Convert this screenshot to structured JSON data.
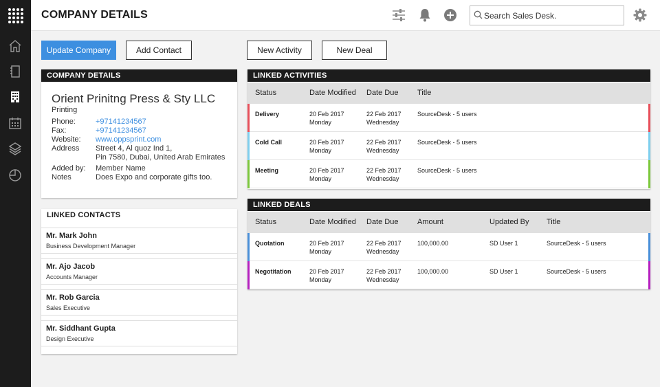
{
  "header": {
    "title": "COMPANY DETAILS",
    "search_placeholder": "Search Sales Desk."
  },
  "actions": {
    "update_company": "Update Company",
    "add_contact": "Add Contact",
    "new_activity": "New Activity",
    "new_deal": "New Deal"
  },
  "company": {
    "heading": "COMPANY DETAILS",
    "name": "Orient Prinitng Press & Sty LLC",
    "industry": "Printing",
    "phone_label": "Phone:",
    "phone": "+97141234567",
    "fax_label": "Fax:",
    "fax": "+97141234567",
    "website_label": "Website:",
    "website": "www.oppsprint.com",
    "address_label": "Address",
    "address_line1": "Street 4, Al quoz Ind 1,",
    "address_line2": "Pin 7580, Dubai, United Arab Emirates",
    "added_by_label": "Added by:",
    "added_by": "Member Name",
    "notes_label": "Notes",
    "notes": "Does Expo and corporate gifts too."
  },
  "contacts": {
    "heading": "LINKED CONTACTS",
    "items": [
      {
        "name": "Mr. Mark John",
        "role": "Business Development Manager"
      },
      {
        "name": "Mr. Ajo Jacob",
        "role": "Accounts Manager"
      },
      {
        "name": "Mr. Rob Garcia",
        "role": "Sales Executive"
      },
      {
        "name": "Mr. Siddhant Gupta",
        "role": "Design Executive"
      }
    ]
  },
  "activities": {
    "heading": "LINKED ACTIVITIES",
    "columns": [
      "Status",
      "Date Modified",
      "Date Due",
      "Title"
    ],
    "rows": [
      {
        "status": "Delivery",
        "modified": "20 Feb 2017",
        "modified_day": "Monday",
        "due": "22 Feb 2017",
        "due_day": "Wednesday",
        "title": "SourceDesk - 5 users",
        "color": "#e8505b"
      },
      {
        "status": "Cold Call",
        "modified": "20 Feb 2017",
        "modified_day": "Monday",
        "due": "22 Feb 2017",
        "due_day": "Wednesday",
        "title": "SourceDesk - 5 users",
        "color": "#7fcfee"
      },
      {
        "status": "Meeting",
        "modified": "20 Feb 2017",
        "modified_day": "Monday",
        "due": "22 Feb 2017",
        "due_day": "Wednesday",
        "title": "SourceDesk - 5 users",
        "color": "#7cc83c"
      }
    ]
  },
  "deals": {
    "heading": "LINKED DEALS",
    "columns": [
      "Status",
      "Date Modified",
      "Date Due",
      "Amount",
      "Updated By",
      "Title"
    ],
    "rows": [
      {
        "status": "Quotation",
        "modified": "20 Feb 2017",
        "modified_day": "Monday",
        "due": "22 Feb 2017",
        "due_day": "Wednesday",
        "amount": "100,000.00",
        "updated_by": "SD User 1",
        "title": "SourceDesk - 5 users",
        "color": "#4a90d9"
      },
      {
        "status": "Negotitation",
        "modified": "20 Feb 2017",
        "modified_day": "Monday",
        "due": "22 Feb 2017",
        "due_day": "Wednesday",
        "amount": "100,000.00",
        "updated_by": "SD User 1",
        "title": "SourceDesk - 5 users",
        "color": "#b620c0"
      }
    ]
  },
  "colors": {
    "accent": "#3d8fe0",
    "sidebar": "#1c1c1c"
  },
  "icons": {
    "sidebar": [
      "home-icon",
      "notebook-icon",
      "building-icon",
      "calendar-icon",
      "layers-icon",
      "pie-chart-icon"
    ],
    "header": [
      "filter-sliders-icon",
      "bell-icon",
      "add-circle-icon",
      "search-icon",
      "settings-gear-icon"
    ]
  }
}
